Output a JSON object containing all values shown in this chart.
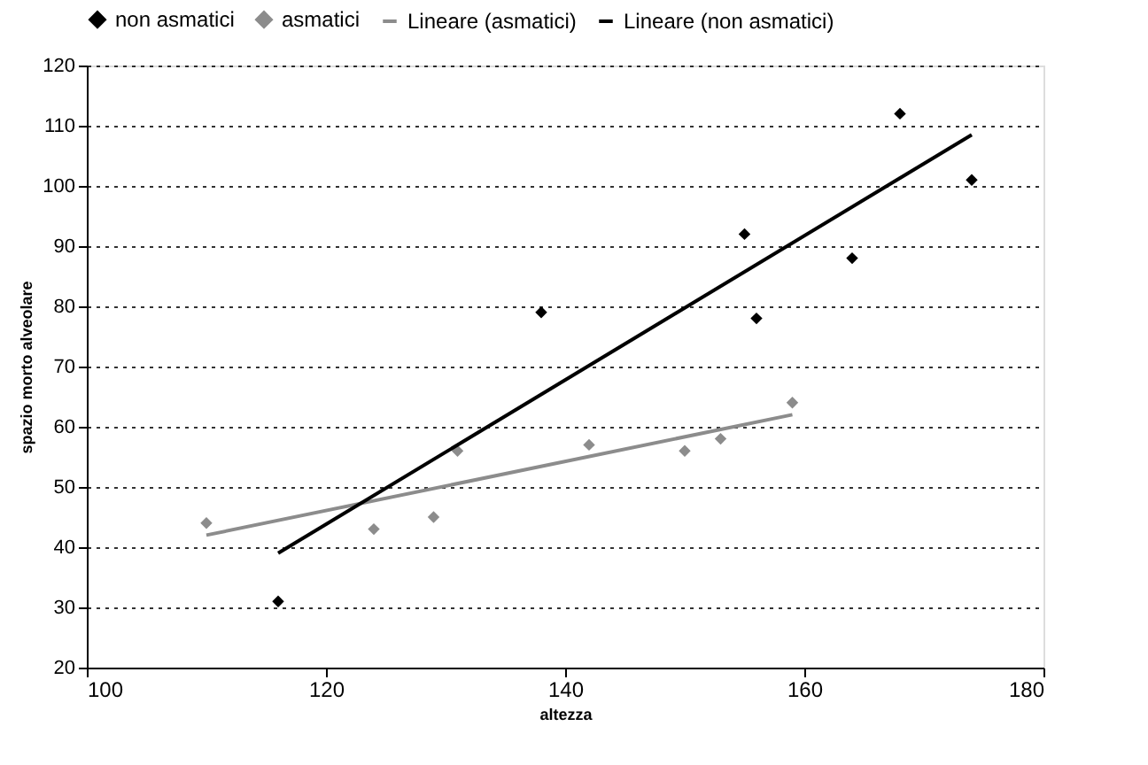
{
  "chart_data": {
    "type": "scatter",
    "xlabel": "altezza",
    "ylabel": "spazio morto alveolare",
    "xlim": [
      100,
      180
    ],
    "xticks": [
      100,
      120,
      140,
      160,
      180
    ],
    "ylim": [
      20,
      120
    ],
    "yticks": [
      20,
      30,
      40,
      50,
      60,
      70,
      80,
      90,
      100,
      110,
      120
    ],
    "grid": "y",
    "legend": "top",
    "series": [
      {
        "name": "non asmatici",
        "color": "#000000",
        "marker": "diamond",
        "x": [
          116,
          138,
          155,
          156,
          164,
          168,
          174
        ],
        "values": [
          31,
          79,
          92,
          78,
          88,
          112,
          101
        ]
      },
      {
        "name": "asmatici",
        "color": "#8c8c8c",
        "marker": "diamond",
        "x": [
          110,
          124,
          129,
          131,
          142,
          150,
          153,
          159
        ],
        "values": [
          44,
          43,
          45,
          56,
          57,
          56,
          58,
          64
        ]
      },
      {
        "name": "Lineare (asmatici)",
        "color": "#8c8c8c",
        "type": "line",
        "marker": "none",
        "x": [
          110,
          159
        ],
        "values": [
          42,
          62
        ]
      },
      {
        "name": "Lineare (non asmatici)",
        "color": "#000000",
        "type": "line",
        "marker": "none",
        "x": [
          116,
          174
        ],
        "values": [
          39,
          108.5
        ]
      }
    ]
  }
}
